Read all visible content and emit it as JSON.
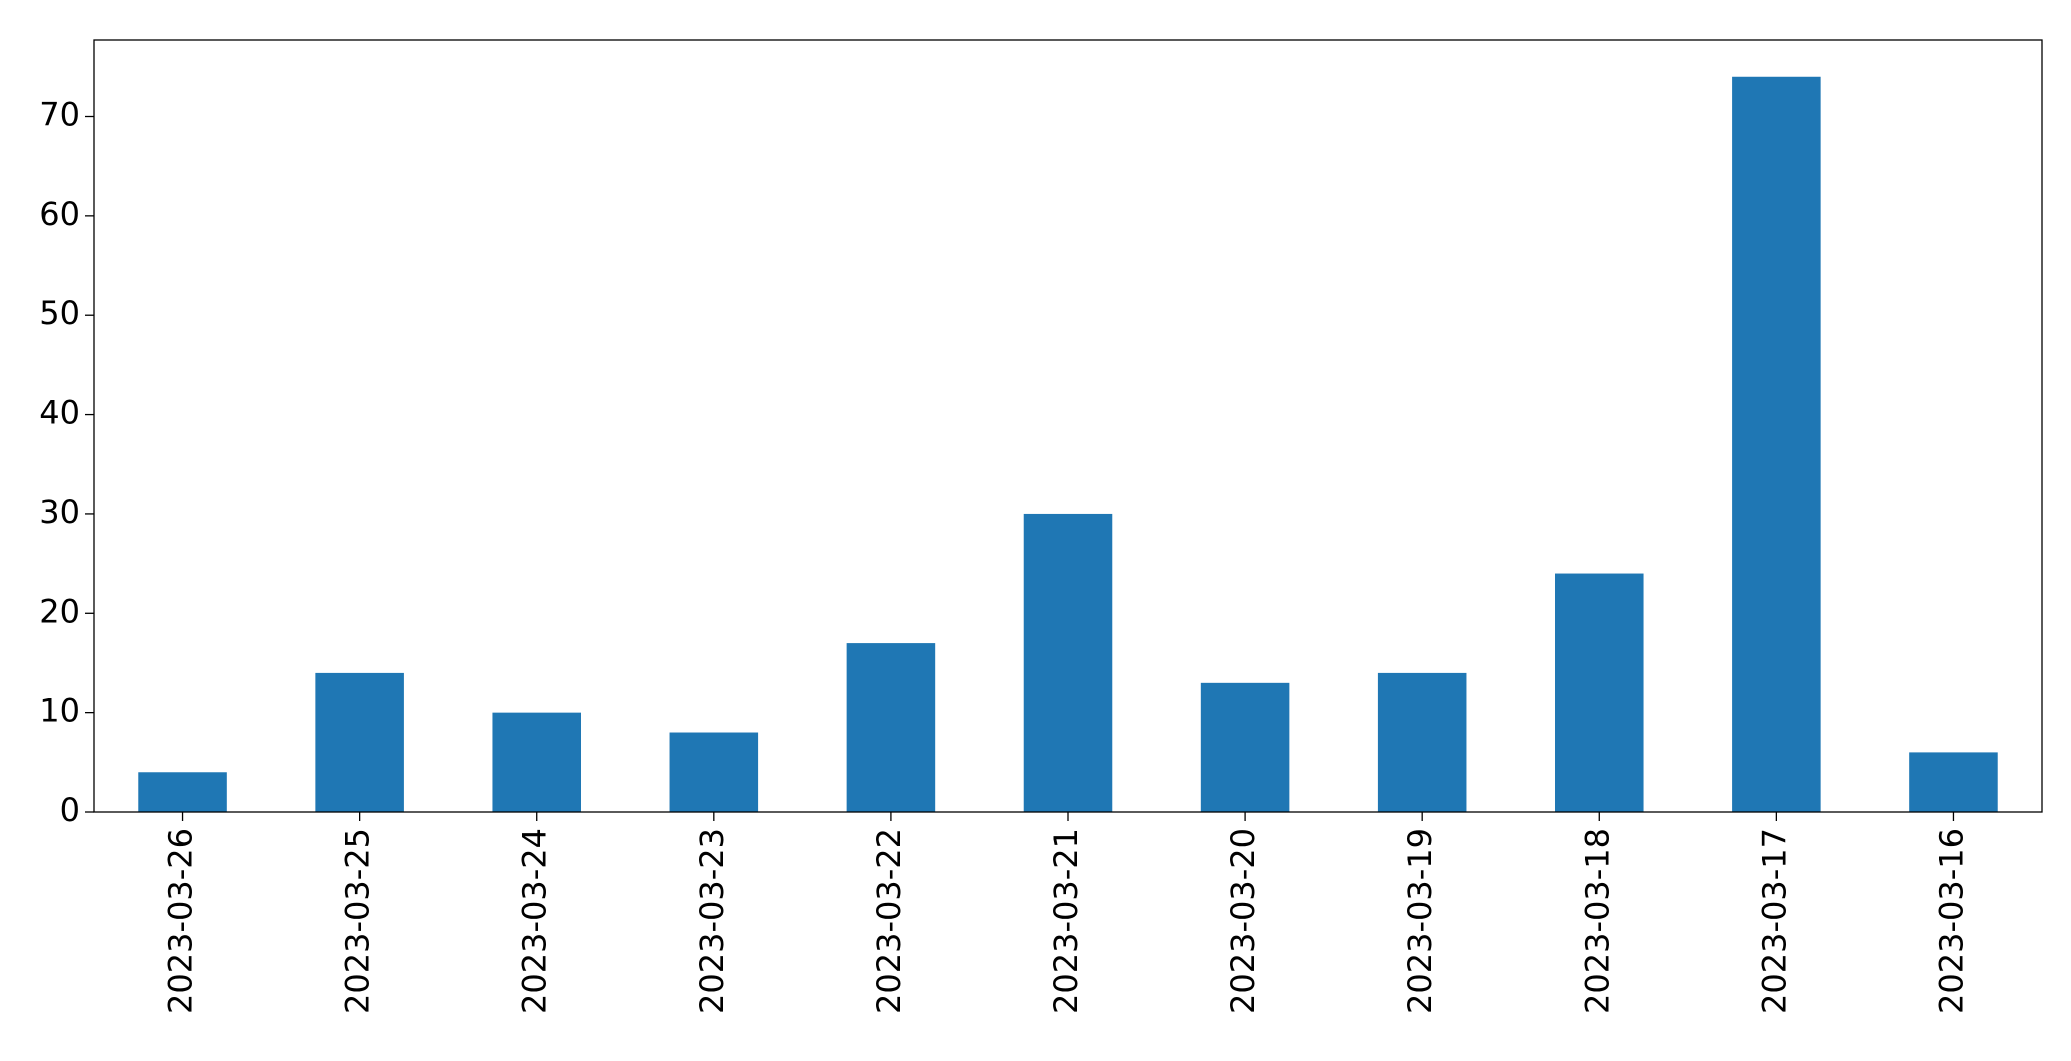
{
  "chart_data": {
    "type": "bar",
    "categories": [
      "2023-03-26",
      "2023-03-25",
      "2023-03-24",
      "2023-03-23",
      "2023-03-22",
      "2023-03-21",
      "2023-03-20",
      "2023-03-19",
      "2023-03-18",
      "2023-03-17",
      "2023-03-16"
    ],
    "values": [
      4,
      14,
      10,
      8,
      17,
      30,
      13,
      14,
      24,
      74,
      6
    ],
    "color": "#1f77b4",
    "ylim": [
      0,
      77.7
    ],
    "yticks": [
      0,
      10,
      20,
      30,
      40,
      50,
      60,
      70
    ],
    "grid": false
  }
}
